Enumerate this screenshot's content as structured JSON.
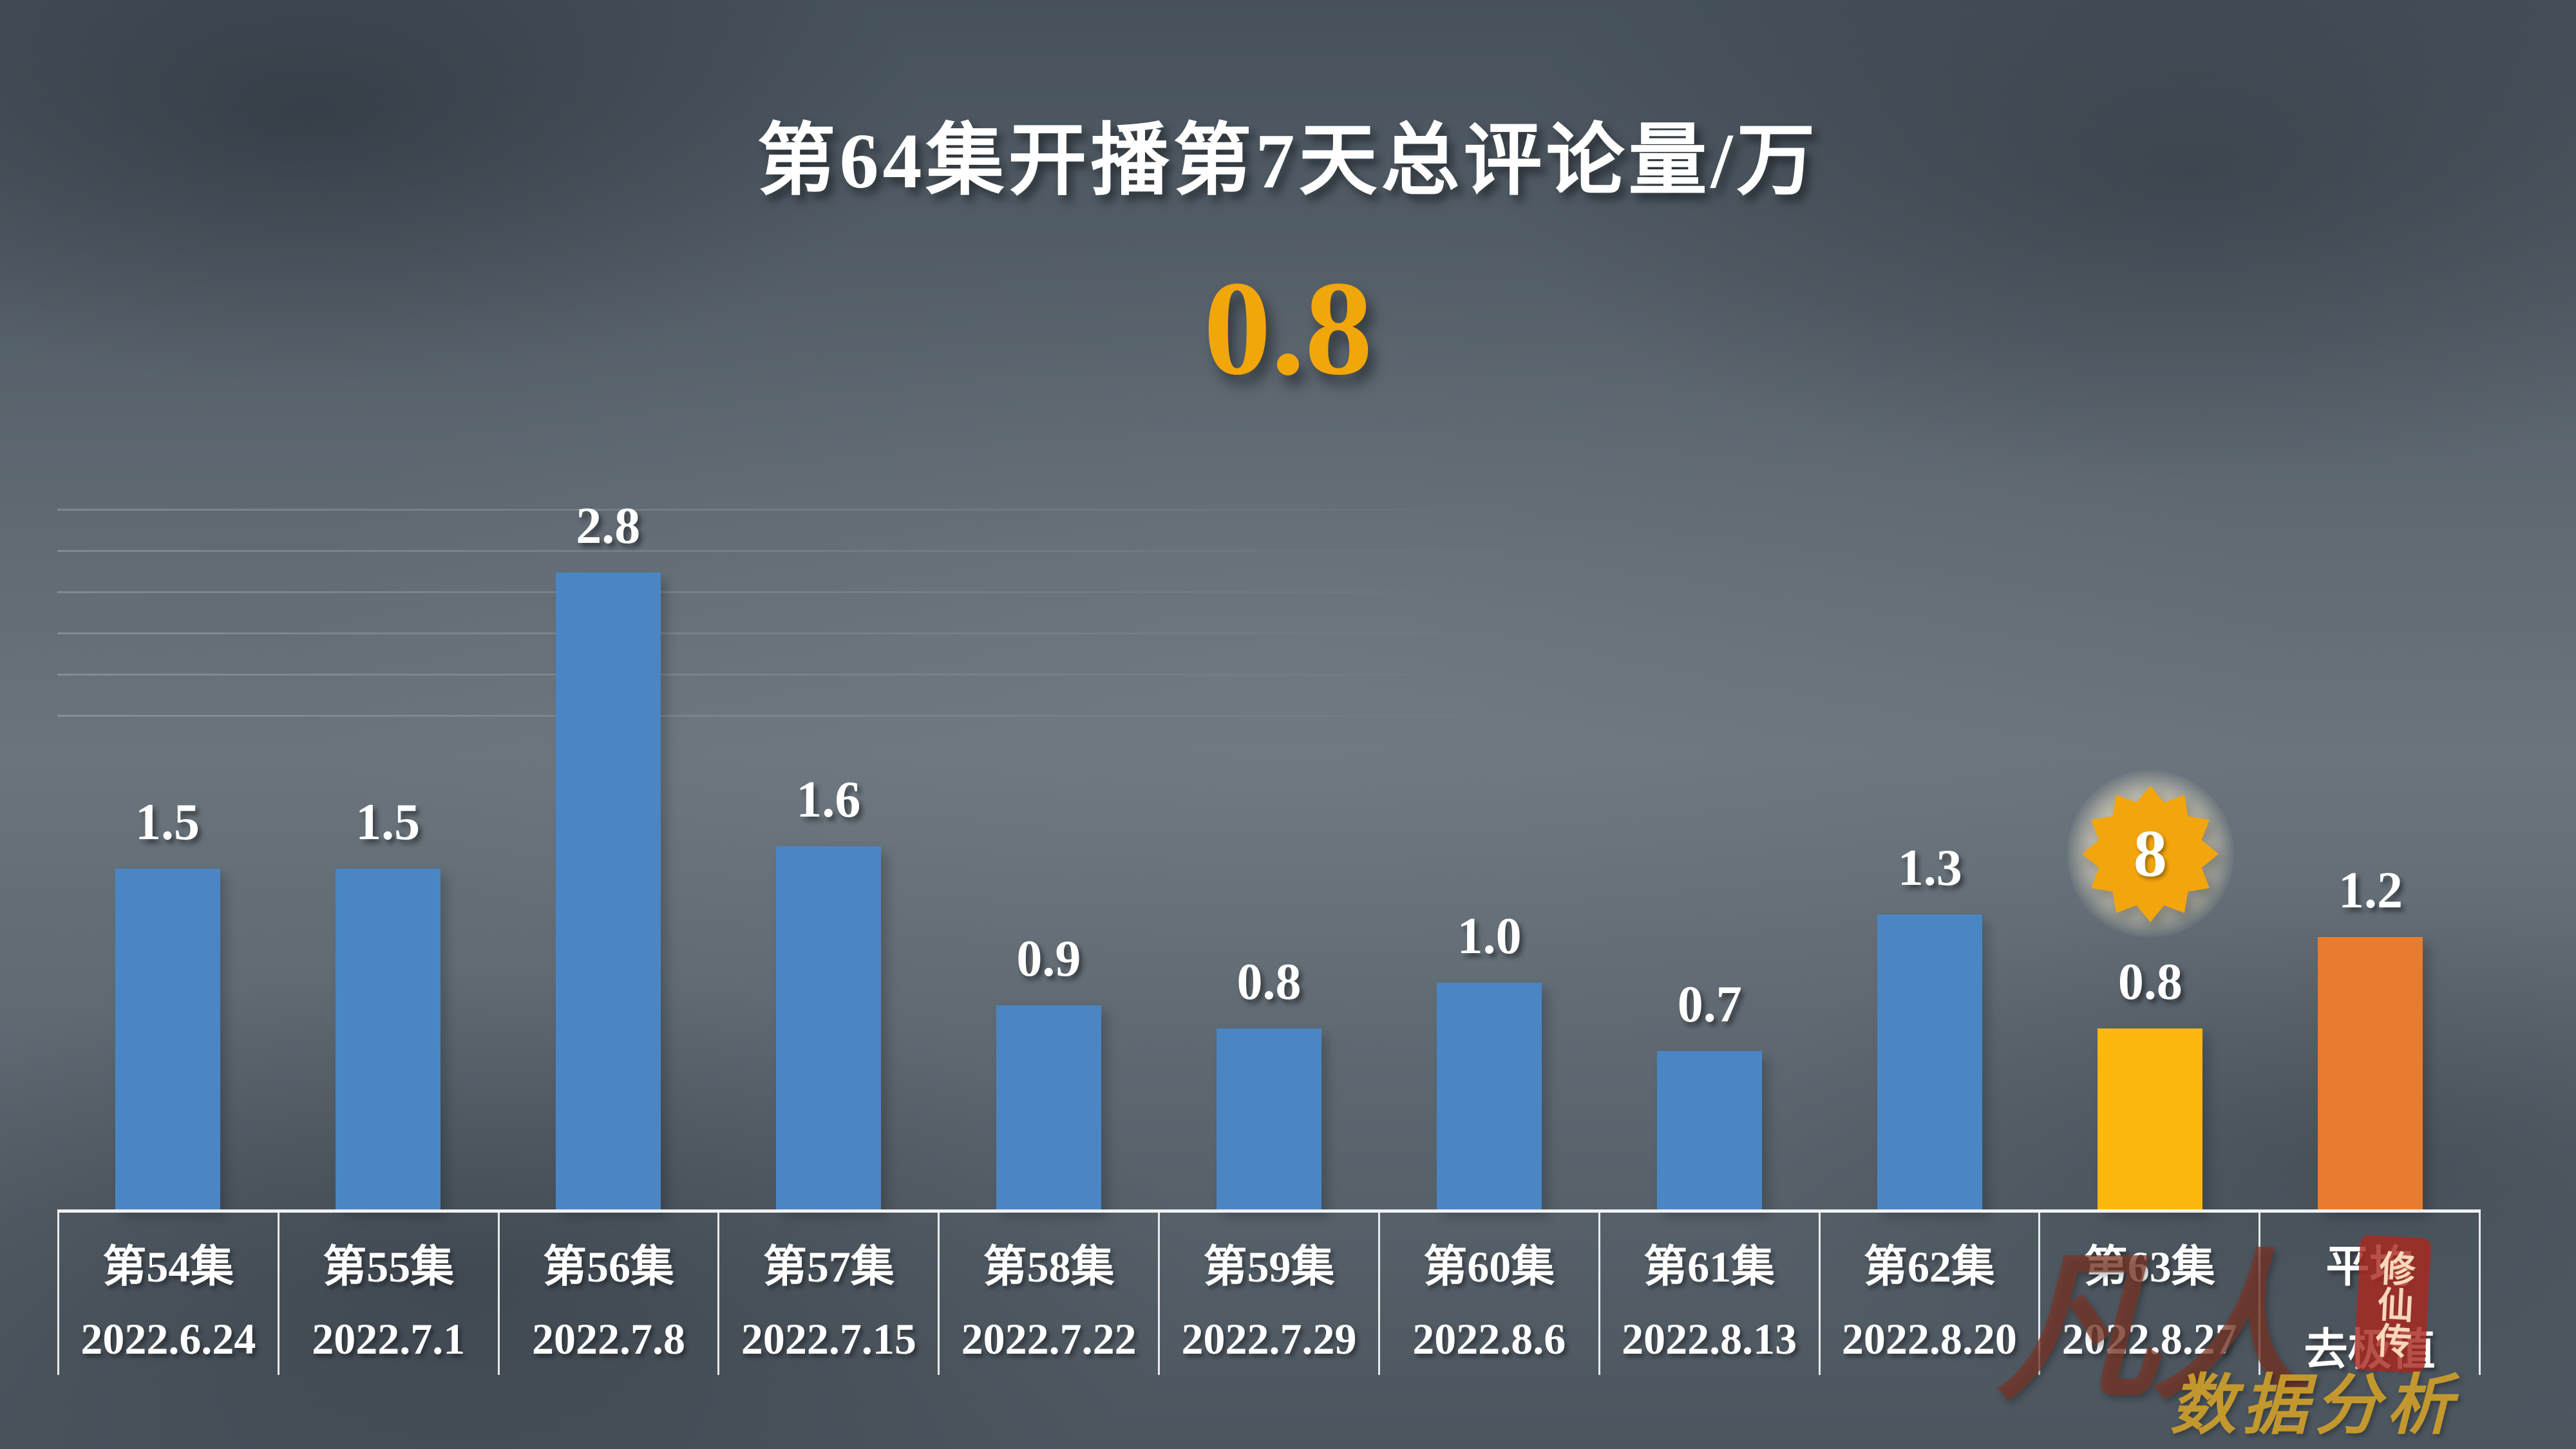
{
  "header": {
    "title": "第64集开播第7天总评论量/万",
    "highlight_value": "0.8",
    "highlight_color": "#f1a60a"
  },
  "chart_data": {
    "type": "bar",
    "title": "第64集开播第7天总评论量/万",
    "ylabel": "评论量/万",
    "ylim": [
      0,
      3.0
    ],
    "grid": "faint-horizontal-left",
    "legend": "none",
    "categories": [
      {
        "line1": "第54集",
        "line2": "2022.6.24"
      },
      {
        "line1": "第55集",
        "line2": "2022.7.1"
      },
      {
        "line1": "第56集",
        "line2": "2022.7.8"
      },
      {
        "line1": "第57集",
        "line2": "2022.7.15"
      },
      {
        "line1": "第58集",
        "line2": "2022.7.22"
      },
      {
        "line1": "第59集",
        "line2": "2022.7.29"
      },
      {
        "line1": "第60集",
        "line2": "2022.8.6"
      },
      {
        "line1": "第61集",
        "line2": "2022.8.13"
      },
      {
        "line1": "第62集",
        "line2": "2022.8.20"
      },
      {
        "line1": "第63集",
        "line2": "2022.8.27"
      },
      {
        "line1": "平均",
        "line2": "去极值"
      }
    ],
    "values": [
      1.5,
      1.5,
      2.8,
      1.6,
      0.9,
      0.8,
      1.0,
      0.7,
      1.3,
      0.8,
      1.2
    ],
    "labels": [
      "1.5",
      "1.5",
      "2.8",
      "1.6",
      "0.9",
      "0.8",
      "1.0",
      "0.7",
      "1.3",
      "0.8",
      "1.2"
    ],
    "bar_colors": [
      "#4b86c4",
      "#4b86c4",
      "#4b86c4",
      "#4b86c4",
      "#4b86c4",
      "#4b86c4",
      "#4b86c4",
      "#4b86c4",
      "#4b86c4",
      "#fcb80d",
      "#e87c2e"
    ],
    "badge": {
      "value": "8",
      "column_index": 9,
      "color": "#f2a50c"
    }
  },
  "watermark": {
    "main": "凡人",
    "seal": "修仙传",
    "sub": "数据分析"
  }
}
